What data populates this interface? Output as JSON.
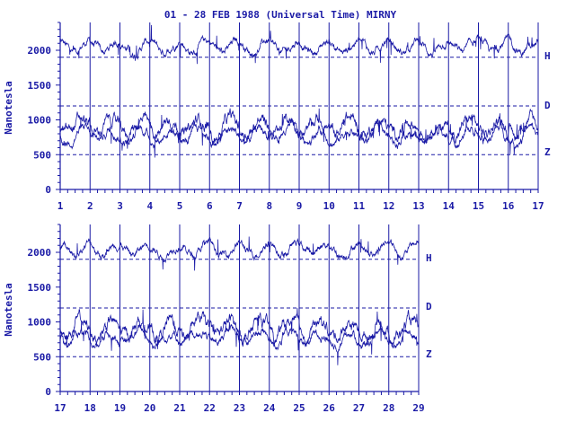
{
  "colors": {
    "ink": "#1a1aa6",
    "background": "#ffffff"
  },
  "chart_data": {
    "type": "line",
    "title": "01 - 28 FEB 1988 (Universal Time) MIRNY",
    "ylabel": "Nanotesla",
    "ylim": [
      0,
      2400
    ],
    "yticks": [
      0,
      500,
      1000,
      1500,
      2000
    ],
    "reference_lines": [
      500,
      1200,
      1900
    ],
    "series": [
      {
        "name": "H",
        "baseline": 2050
      },
      {
        "name": "D",
        "baseline": 900
      },
      {
        "name": "Z",
        "baseline": 780
      }
    ],
    "panels": [
      {
        "xlim": [
          1,
          17
        ],
        "xticks": [
          "1",
          "2",
          "3",
          "4",
          "5",
          "6",
          "7",
          "8",
          "9",
          "10",
          "11",
          "12",
          "13",
          "14",
          "15",
          "16",
          "17"
        ]
      },
      {
        "xlim": [
          17,
          29
        ],
        "xticks": [
          "17",
          "18",
          "19",
          "20",
          "21",
          "22",
          "23",
          "24",
          "25",
          "26",
          "27",
          "28",
          "29"
        ]
      }
    ]
  }
}
